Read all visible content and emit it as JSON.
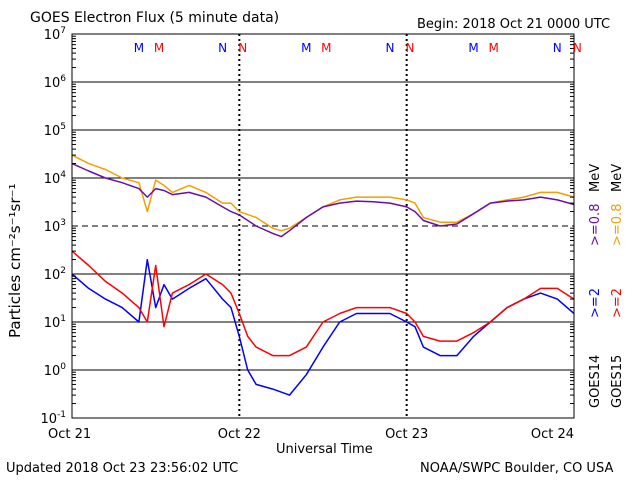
{
  "header": {
    "title": "GOES Electron Flux (5 minute data)",
    "begin": "Begin: 2018 Oct 21 0000 UTC"
  },
  "footer": {
    "updated": "Updated 2018 Oct 23 23:56:02 UTC",
    "credit": "NOAA/SWPC Boulder, CO USA"
  },
  "ylabel_text": "Particles cm⁻²s⁻¹sr⁻¹",
  "right_labels": {
    "goes14": "GOES14",
    "goes15": "GOES15",
    "g14_ge2": ">=2",
    "g15_ge2": ">=2",
    "g14_ge08": ">=0.8",
    "g15_ge08": ">=0.8",
    "mev_top": "MeV",
    "mev_bottom": "MeV"
  },
  "colors": {
    "goes15_ge08": "#f0a000",
    "goes14_ge08": "#6a0dad",
    "goes14_ge2": "#0000ff",
    "goes15_ge2": "#ff0000"
  },
  "markers": {
    "m": "M",
    "n": "N",
    "days": [
      {
        "m_blue": 0.4,
        "m_red": 0.52,
        "n_blue": 0.9,
        "n_red": 1.02
      },
      {
        "m_blue": 1.4,
        "m_red": 1.52,
        "n_blue": 1.9,
        "n_red": 2.02
      },
      {
        "m_blue": 2.4,
        "m_red": 2.52,
        "n_blue": 2.9,
        "n_red": 3.02
      }
    ]
  },
  "chart_data": {
    "type": "line",
    "title": "GOES Electron Flux (5 minute data)",
    "xlabel": "Universal Time",
    "ylabel": "Particles cm-2s-1sr-1",
    "xlim": [
      0,
      3
    ],
    "ylim": [
      0.1,
      10000000
    ],
    "yscale": "log",
    "x_ticks": [
      {
        "x": 0,
        "label": "Oct 21"
      },
      {
        "x": 1,
        "label": "Oct 22"
      },
      {
        "x": 2,
        "label": "Oct 23"
      },
      {
        "x": 3,
        "label": "Oct 24"
      }
    ],
    "y_ticks": [
      {
        "exp": -1,
        "label": "10",
        "sup": "-1"
      },
      {
        "exp": 0,
        "label": "10",
        "sup": "0"
      },
      {
        "exp": 1,
        "label": "10",
        "sup": "1"
      },
      {
        "exp": 2,
        "label": "10",
        "sup": "2"
      },
      {
        "exp": 3,
        "label": "10",
        "sup": "3"
      },
      {
        "exp": 4,
        "label": "10",
        "sup": "4"
      },
      {
        "exp": 5,
        "label": "10",
        "sup": "5"
      },
      {
        "exp": 6,
        "label": "10",
        "sup": "6"
      },
      {
        "exp": 7,
        "label": "10",
        "sup": "7"
      }
    ],
    "threshold": 1000,
    "series": [
      {
        "key": "goes15_ge08",
        "x": [
          0,
          0.1,
          0.2,
          0.3,
          0.4,
          0.45,
          0.5,
          0.55,
          0.6,
          0.7,
          0.8,
          0.9,
          0.95,
          1.0,
          1.1,
          1.2,
          1.25,
          1.3,
          1.4,
          1.5,
          1.6,
          1.7,
          1.8,
          1.9,
          2.0,
          2.05,
          2.1,
          2.2,
          2.3,
          2.4,
          2.5,
          2.6,
          2.7,
          2.8,
          2.9,
          3.0
        ],
        "y": [
          30000,
          20000,
          15000,
          10000,
          8000,
          2000,
          9000,
          7000,
          5000,
          7000,
          5000,
          3000,
          3000,
          2000,
          1500,
          900,
          800,
          900,
          1500,
          2500,
          3500,
          4000,
          4000,
          4000,
          3500,
          3000,
          1500,
          1200,
          1200,
          1800,
          3000,
          3500,
          4000,
          5000,
          5000,
          4000
        ]
      },
      {
        "key": "goes14_ge08",
        "x": [
          0,
          0.1,
          0.2,
          0.3,
          0.4,
          0.45,
          0.5,
          0.55,
          0.6,
          0.7,
          0.8,
          0.9,
          0.95,
          1.0,
          1.1,
          1.2,
          1.25,
          1.3,
          1.4,
          1.5,
          1.6,
          1.7,
          1.8,
          1.9,
          2.0,
          2.05,
          2.1,
          2.2,
          2.3,
          2.4,
          2.5,
          2.6,
          2.7,
          2.8,
          2.9,
          3.0
        ],
        "y": [
          20000,
          14000,
          10000,
          8000,
          6000,
          4000,
          6000,
          5500,
          4500,
          5000,
          4000,
          2500,
          2000,
          1700,
          1000,
          700,
          600,
          800,
          1500,
          2500,
          3000,
          3300,
          3200,
          3000,
          2500,
          2000,
          1300,
          1000,
          1100,
          1800,
          3000,
          3300,
          3500,
          4000,
          3500,
          2800
        ]
      },
      {
        "key": "goes14_ge2",
        "x": [
          0,
          0.1,
          0.2,
          0.3,
          0.4,
          0.45,
          0.5,
          0.55,
          0.6,
          0.7,
          0.8,
          0.9,
          0.95,
          1.0,
          1.05,
          1.1,
          1.2,
          1.3,
          1.4,
          1.5,
          1.6,
          1.7,
          1.8,
          1.9,
          2.0,
          2.05,
          2.1,
          2.2,
          2.3,
          2.4,
          2.5,
          2.6,
          2.7,
          2.8,
          2.9,
          3.0
        ],
        "y": [
          100,
          50,
          30,
          20,
          10,
          200,
          20,
          60,
          30,
          50,
          80,
          30,
          20,
          5,
          1,
          0.5,
          0.4,
          0.3,
          0.8,
          3,
          10,
          15,
          15,
          15,
          10,
          8,
          3,
          2,
          2,
          5,
          10,
          20,
          30,
          40,
          30,
          15
        ]
      },
      {
        "key": "goes15_ge2",
        "x": [
          0,
          0.1,
          0.2,
          0.3,
          0.4,
          0.45,
          0.5,
          0.55,
          0.6,
          0.7,
          0.8,
          0.9,
          0.95,
          1.0,
          1.05,
          1.1,
          1.2,
          1.3,
          1.4,
          1.5,
          1.6,
          1.7,
          1.8,
          1.9,
          2.0,
          2.05,
          2.1,
          2.2,
          2.3,
          2.4,
          2.5,
          2.6,
          2.7,
          2.8,
          2.9,
          3.0
        ],
        "y": [
          300,
          150,
          70,
          40,
          20,
          10,
          150,
          8,
          40,
          60,
          100,
          60,
          40,
          15,
          5,
          3,
          2,
          2,
          3,
          10,
          15,
          20,
          20,
          20,
          15,
          10,
          5,
          4,
          4,
          6,
          10,
          20,
          30,
          50,
          50,
          30
        ]
      }
    ]
  }
}
